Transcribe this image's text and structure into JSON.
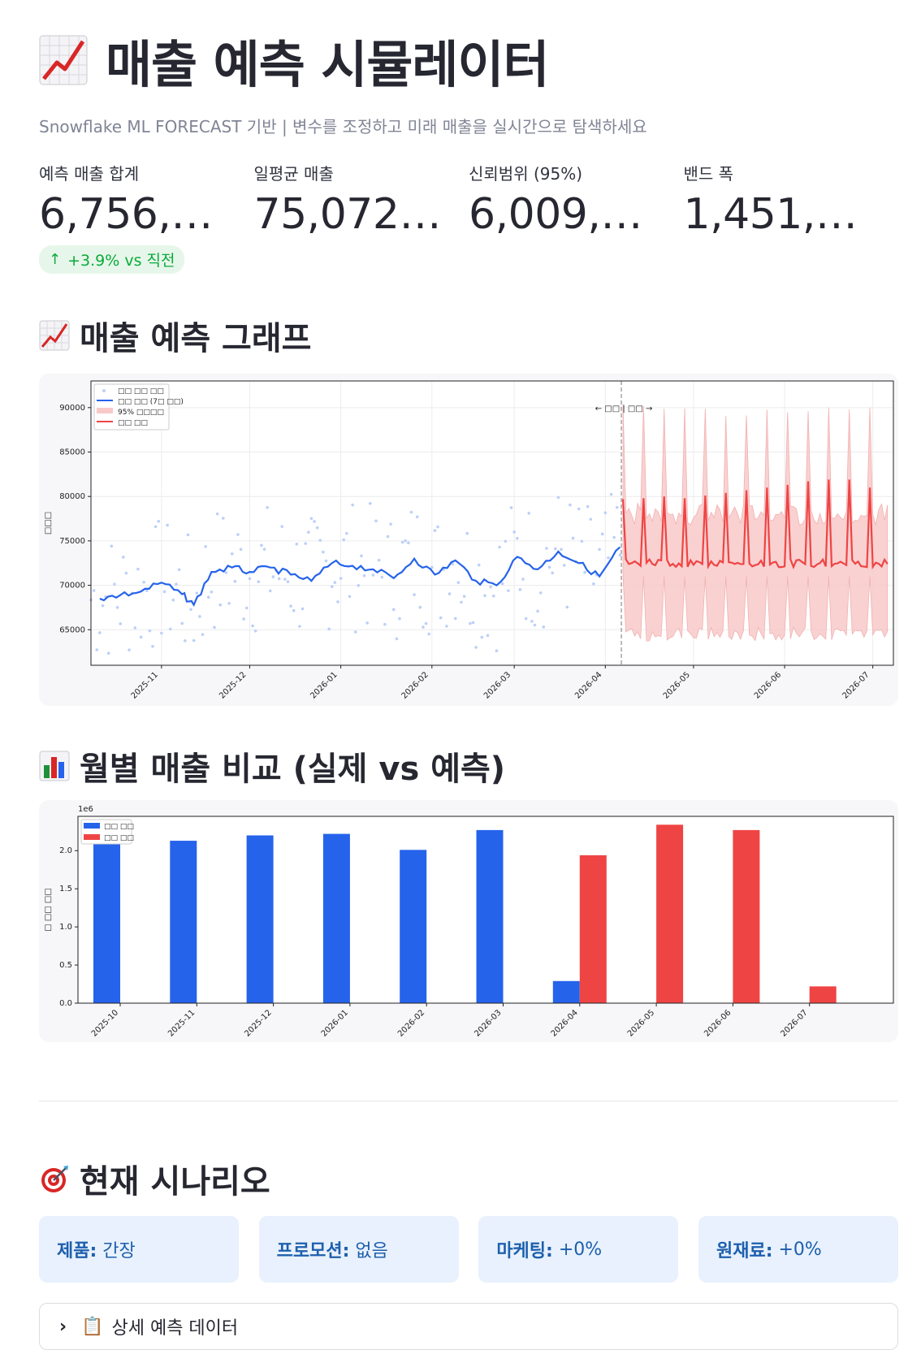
{
  "header": {
    "title": "매출 예측 시뮬레이터",
    "title_icon": "chart-increasing-icon",
    "subtitle": "Snowflake ML FORECAST 기반 | 변수를 조정하고 미래 매출을 실시간으로 탐색하세요"
  },
  "metrics": [
    {
      "label": "예측 매출 합계",
      "value": "6,756,5...",
      "delta": "+3.9% vs 직전"
    },
    {
      "label": "일평균 매출",
      "value": "75,072...."
    },
    {
      "label": "신뢰범위 (95%)",
      "value": "6,009,4..."
    },
    {
      "label": "밴드 폭",
      "value": "1,451,5..."
    }
  ],
  "sections": {
    "forecast_title": "매출 예측 그래프",
    "monthly_title": "월별 매출 비교 (실제 vs 예측)",
    "scenario_title": "현재 시나리오"
  },
  "scenario": [
    {
      "key": "제품:",
      "value": "간장"
    },
    {
      "key": "프로모션:",
      "value": "없음"
    },
    {
      "key": "마케팅:",
      "value": "+0%"
    },
    {
      "key": "원재료:",
      "value": "+0%"
    }
  ],
  "expander": {
    "label": "상세 예측 데이터"
  },
  "colors": {
    "actual": "#2563eb",
    "forecast": "#ef4444",
    "band": "#f8c9c9"
  },
  "chart_data": [
    {
      "type": "line",
      "ylabel": "□□□",
      "ylim": [
        61000,
        93000
      ],
      "yticks": [
        65000,
        70000,
        75000,
        80000,
        85000,
        90000
      ],
      "xticks": [
        "2025-11",
        "2025-12",
        "2026-01",
        "2026-02",
        "2026-03",
        "2026-04",
        "2026-05",
        "2026-06",
        "2026-07"
      ],
      "annotation": "← □□ | □□ →",
      "legend": [
        "□□ □□ □□",
        "□□ □□ (7□ □□)",
        "95% □□□□",
        "□□ □□"
      ],
      "legend_placement": "top-left",
      "grid": true,
      "actual_ma7": [
        {
          "x": "2025-10-11",
          "y": 68500
        },
        {
          "x": "2025-10-18",
          "y": 68900
        },
        {
          "x": "2025-10-25",
          "y": 69300
        },
        {
          "x": "2025-11-01",
          "y": 70300
        },
        {
          "x": "2025-11-08",
          "y": 69000
        },
        {
          "x": "2025-11-12",
          "y": 67800
        },
        {
          "x": "2025-11-18",
          "y": 71500
        },
        {
          "x": "2025-11-25",
          "y": 72000
        },
        {
          "x": "2025-12-01",
          "y": 71500
        },
        {
          "x": "2025-12-08",
          "y": 72000
        },
        {
          "x": "2025-12-15",
          "y": 71200
        },
        {
          "x": "2025-12-22",
          "y": 70500
        },
        {
          "x": "2025-12-29",
          "y": 72500
        },
        {
          "x": "2026-01-05",
          "y": 72200
        },
        {
          "x": "2026-01-12",
          "y": 71800
        },
        {
          "x": "2026-01-19",
          "y": 70800
        },
        {
          "x": "2026-01-26",
          "y": 73000
        },
        {
          "x": "2026-02-02",
          "y": 71200
        },
        {
          "x": "2026-02-09",
          "y": 72800
        },
        {
          "x": "2026-02-16",
          "y": 70500
        },
        {
          "x": "2026-02-23",
          "y": 70000
        },
        {
          "x": "2026-03-02",
          "y": 73200
        },
        {
          "x": "2026-03-09",
          "y": 71800
        },
        {
          "x": "2026-03-16",
          "y": 73800
        },
        {
          "x": "2026-03-23",
          "y": 72500
        },
        {
          "x": "2026-03-30",
          "y": 71000
        },
        {
          "x": "2026-04-06",
          "y": 74300
        }
      ],
      "forecast_peaks": [
        {
          "x": "2026-04-07",
          "y": 79700
        },
        {
          "x": "2026-04-14",
          "y": 79800
        },
        {
          "x": "2026-04-21",
          "y": 80000
        },
        {
          "x": "2026-04-28",
          "y": 79800
        },
        {
          "x": "2026-05-05",
          "y": 80100
        },
        {
          "x": "2026-05-12",
          "y": 80400
        },
        {
          "x": "2026-05-19",
          "y": 80700
        },
        {
          "x": "2026-05-26",
          "y": 81000
        },
        {
          "x": "2026-06-02",
          "y": 81300
        },
        {
          "x": "2026-06-09",
          "y": 81700
        },
        {
          "x": "2026-06-16",
          "y": 81900
        },
        {
          "x": "2026-06-23",
          "y": 81900
        },
        {
          "x": "2026-06-30",
          "y": 81000
        }
      ],
      "forecast_base": 72500,
      "band_lower": 64500,
      "band_upper_peak": 90500
    },
    {
      "type": "bar",
      "ylabel": "□ □□ □□",
      "yscale_label": "1e6",
      "ylim": [
        0,
        2.45
      ],
      "yticks": [
        "0.0",
        "0.5",
        "1.0",
        "1.5",
        "2.0"
      ],
      "legend": [
        "□□ □□",
        "□□ □□"
      ],
      "legend_placement": "top-left",
      "categories": [
        "2025-10",
        "2025-11",
        "2025-12",
        "2026-01",
        "2026-02",
        "2026-03",
        "2026-04",
        "2026-05",
        "2026-06",
        "2026-07"
      ],
      "series": [
        {
          "name": "□□ □□",
          "values": [
            2.13,
            2.13,
            2.2,
            2.22,
            2.01,
            2.27,
            0.29,
            0,
            0,
            0
          ]
        },
        {
          "name": "□□ □□",
          "values": [
            0,
            0,
            0,
            0,
            0,
            0,
            1.94,
            2.34,
            2.27,
            0.22
          ]
        }
      ]
    }
  ]
}
